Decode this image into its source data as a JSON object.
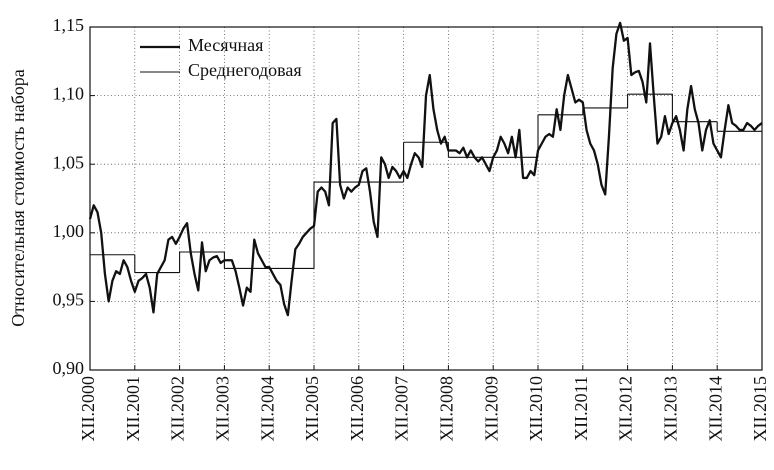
{
  "chart_data": {
    "type": "line",
    "ylabel": "Относительная стоимость набора",
    "xlim": [
      0,
      180
    ],
    "xticks": [
      {
        "value": 0,
        "label": "XII.2000"
      },
      {
        "value": 12,
        "label": "XII.2001"
      },
      {
        "value": 24,
        "label": "XII.2002"
      },
      {
        "value": 36,
        "label": "XII.2003"
      },
      {
        "value": 48,
        "label": "XII.2004"
      },
      {
        "value": 60,
        "label": "XII.2005"
      },
      {
        "value": 72,
        "label": "XII.2006"
      },
      {
        "value": 84,
        "label": "XII.2007"
      },
      {
        "value": 96,
        "label": "XII.2008"
      },
      {
        "value": 108,
        "label": "XII.2009"
      },
      {
        "value": 120,
        "label": "XII.2010"
      },
      {
        "value": 132,
        "label": "XII.2011"
      },
      {
        "value": 144,
        "label": "XII.2012"
      },
      {
        "value": 156,
        "label": "XII.2013"
      },
      {
        "value": 168,
        "label": "XII.2014"
      },
      {
        "value": 180,
        "label": "XII.2015"
      }
    ],
    "ylim": [
      0.9,
      1.15
    ],
    "yticks": [
      {
        "value": 0.9,
        "label": "0,90"
      },
      {
        "value": 0.95,
        "label": "0,95"
      },
      {
        "value": 1.0,
        "label": "1,00"
      },
      {
        "value": 1.05,
        "label": "1,05"
      },
      {
        "value": 1.1,
        "label": "1,10"
      },
      {
        "value": 1.15,
        "label": "1,15"
      }
    ],
    "grid": true,
    "legend": "upper left",
    "series": [
      {
        "name": "Месячная",
        "color": "#111111",
        "x": [
          0,
          1,
          2,
          3,
          4,
          5,
          6,
          7,
          8,
          9,
          10,
          11,
          12,
          13,
          14,
          15,
          16,
          17,
          18,
          19,
          20,
          21,
          22,
          23,
          24,
          25,
          26,
          27,
          28,
          29,
          30,
          31,
          32,
          33,
          34,
          35,
          36,
          37,
          38,
          39,
          40,
          41,
          42,
          43,
          44,
          45,
          46,
          47,
          48,
          49,
          50,
          51,
          52,
          53,
          54,
          55,
          56,
          57,
          58,
          59,
          60,
          61,
          62,
          63,
          64,
          65,
          66,
          67,
          68,
          69,
          70,
          71,
          72,
          73,
          74,
          75,
          76,
          77,
          78,
          79,
          80,
          81,
          82,
          83,
          84,
          85,
          86,
          87,
          88,
          89,
          90,
          91,
          92,
          93,
          94,
          95,
          96,
          97,
          98,
          99,
          100,
          101,
          102,
          103,
          104,
          105,
          106,
          107,
          108,
          109,
          110,
          111,
          112,
          113,
          114,
          115,
          116,
          117,
          118,
          119,
          120,
          121,
          122,
          123,
          124,
          125,
          126,
          127,
          128,
          129,
          130,
          131,
          132,
          133,
          134,
          135,
          136,
          137,
          138,
          139,
          140,
          141,
          142,
          143,
          144,
          145,
          146,
          147,
          148,
          149,
          150,
          151,
          152,
          153,
          154,
          155,
          156,
          157,
          158,
          159,
          160,
          161,
          162,
          163,
          164,
          165,
          166,
          167,
          168,
          169,
          170,
          171,
          172,
          173,
          174,
          175,
          176,
          177,
          178,
          179,
          180
        ],
        "values": [
          1.01,
          1.02,
          1.015,
          1.0,
          0.97,
          0.95,
          0.965,
          0.972,
          0.97,
          0.98,
          0.975,
          0.965,
          0.957,
          0.965,
          0.967,
          0.97,
          0.96,
          0.942,
          0.97,
          0.975,
          0.98,
          0.995,
          0.997,
          0.992,
          0.997,
          1.003,
          1.007,
          0.985,
          0.97,
          0.958,
          0.993,
          0.972,
          0.98,
          0.982,
          0.983,
          0.978,
          0.98,
          0.98,
          0.98,
          0.972,
          0.96,
          0.947,
          0.96,
          0.957,
          0.995,
          0.985,
          0.98,
          0.975,
          0.975,
          0.97,
          0.965,
          0.962,
          0.948,
          0.94,
          0.965,
          0.988,
          0.992,
          0.997,
          1.0,
          1.003,
          1.005,
          1.03,
          1.033,
          1.03,
          1.02,
          1.08,
          1.083,
          1.035,
          1.025,
          1.033,
          1.03,
          1.033,
          1.035,
          1.045,
          1.047,
          1.03,
          1.008,
          0.997,
          1.055,
          1.05,
          1.04,
          1.048,
          1.045,
          1.04,
          1.045,
          1.04,
          1.05,
          1.058,
          1.055,
          1.048,
          1.1,
          1.115,
          1.09,
          1.075,
          1.065,
          1.07,
          1.06,
          1.06,
          1.06,
          1.058,
          1.062,
          1.055,
          1.06,
          1.055,
          1.052,
          1.055,
          1.05,
          1.045,
          1.055,
          1.06,
          1.07,
          1.065,
          1.058,
          1.07,
          1.055,
          1.075,
          1.04,
          1.04,
          1.045,
          1.042,
          1.06,
          1.065,
          1.07,
          1.072,
          1.07,
          1.09,
          1.075,
          1.1,
          1.115,
          1.105,
          1.095,
          1.097,
          1.095,
          1.075,
          1.065,
          1.06,
          1.05,
          1.035,
          1.028,
          1.07,
          1.12,
          1.145,
          1.153,
          1.14,
          1.142,
          1.115,
          1.117,
          1.118,
          1.11,
          1.095,
          1.138,
          1.1,
          1.065,
          1.07,
          1.085,
          1.072,
          1.08,
          1.085,
          1.075,
          1.06,
          1.09,
          1.107,
          1.09,
          1.08,
          1.06,
          1.075,
          1.082,
          1.065,
          1.06,
          1.055,
          1.075,
          1.093,
          1.08,
          1.078,
          1.075,
          1.075,
          1.08,
          1.078,
          1.075,
          1.078,
          1.08
        ]
      },
      {
        "name": "Среднегодовая",
        "color": "#111111",
        "step": true,
        "x": [
          0,
          12,
          24,
          36,
          48,
          60,
          72,
          84,
          96,
          108,
          120,
          132,
          144,
          156,
          168
        ],
        "values": [
          0.984,
          0.971,
          0.986,
          0.974,
          0.974,
          1.037,
          1.037,
          1.066,
          1.055,
          1.055,
          1.086,
          1.091,
          1.101,
          1.081,
          1.074
        ]
      }
    ]
  }
}
